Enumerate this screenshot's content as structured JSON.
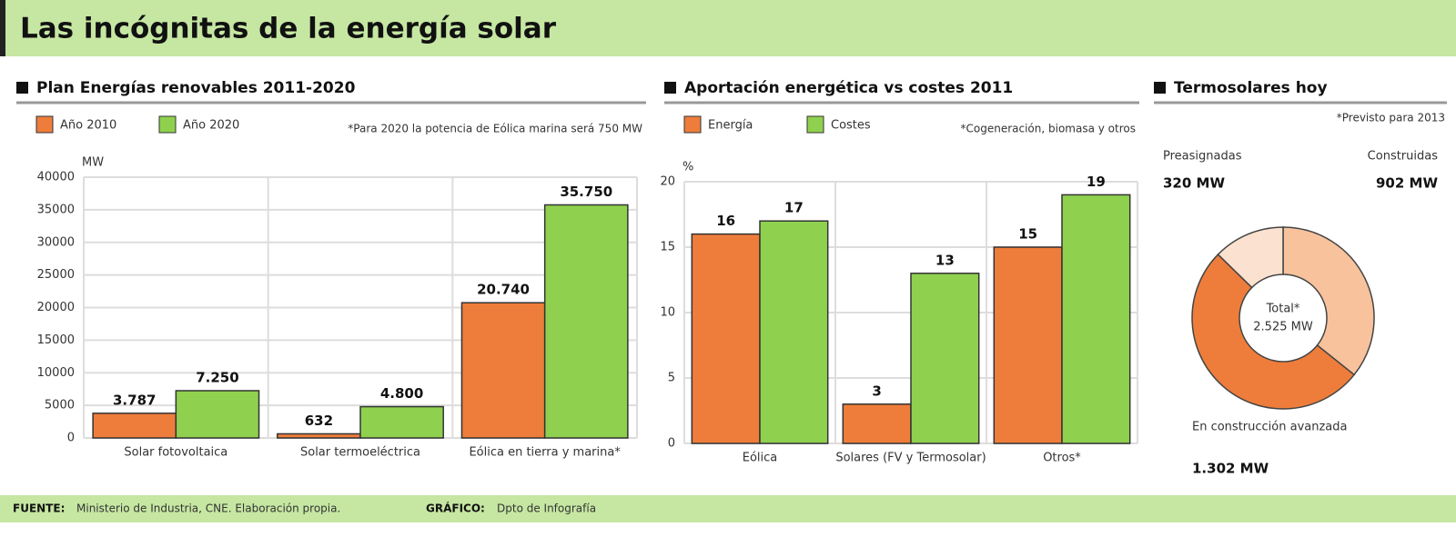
{
  "header": {
    "title": "Las incógnitas de la energía solar"
  },
  "chart_data": [
    {
      "type": "bar",
      "title": "Plan Energías renovables 2011-2020",
      "note": "*Para 2020 la potencia de Eólica marina será 750 MW",
      "y_label": "MW",
      "categories": [
        "Solar fotovoltaica",
        "Solar termoeléctrica",
        "Eólica en tierra y marina*"
      ],
      "series": [
        {
          "name": "Año 2010",
          "color": "#ee7d3b",
          "values": [
            3787,
            632,
            20740
          ],
          "value_labels": [
            "3.787",
            "632",
            "20.740"
          ]
        },
        {
          "name": "Año 2020",
          "color": "#8fd14f",
          "values": [
            7250,
            4800,
            35750
          ],
          "value_labels": [
            "7.250",
            "4.800",
            "35.750"
          ]
        }
      ],
      "ylim": [
        0,
        40000
      ],
      "yticks": [
        0,
        5000,
        10000,
        15000,
        20000,
        25000,
        30000,
        35000,
        40000
      ],
      "grid": true
    },
    {
      "type": "bar",
      "title": "Aportación energética vs costes 2011",
      "note": "*Cogeneración, biomasa y otros",
      "y_label": "%",
      "categories": [
        "Eólica",
        "Solares (FV y Termosolar)",
        "Otros*"
      ],
      "series": [
        {
          "name": "Energía",
          "color": "#ee7d3b",
          "values": [
            16,
            3,
            15
          ]
        },
        {
          "name": "Costes",
          "color": "#8fd14f",
          "values": [
            17,
            13,
            19
          ]
        }
      ],
      "ylim": [
        0,
        20
      ],
      "yticks": [
        0,
        5,
        10,
        15,
        20
      ],
      "grid": true
    },
    {
      "type": "pie",
      "title": "Termosolares hoy",
      "note": "*Previsto para 2013",
      "categories": [
        "Construidas",
        "En construcción avanzada",
        "Preasignadas"
      ],
      "values": [
        902,
        1302,
        320
      ],
      "value_labels": [
        "902 MW",
        "1.302 MW",
        "320 MW"
      ],
      "colors": [
        "#f7c29c",
        "#ee7d3b",
        "#fbe1cf"
      ],
      "total_title": "Total*",
      "total": 2525,
      "total_label": "2.525 MW"
    }
  ],
  "footer": {
    "source_label": "FUENTE:",
    "source": "Ministerio de Industria, CNE. Elaboración propia.",
    "graphic_label": "GRÁFICO:",
    "graphic": "Dpto de Infografía"
  }
}
